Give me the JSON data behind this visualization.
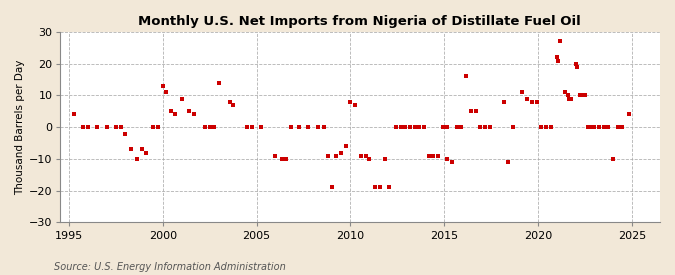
{
  "title": "Monthly U.S. Net Imports from Nigeria of Distillate Fuel Oil",
  "ylabel": "Thousand Barrels per Day",
  "source": "Source: U.S. Energy Information Administration",
  "xlim": [
    1994.5,
    2026.5
  ],
  "ylim": [
    -30,
    30
  ],
  "yticks": [
    -30,
    -20,
    -10,
    0,
    10,
    20,
    30
  ],
  "xticks": [
    1995,
    2000,
    2005,
    2010,
    2015,
    2020,
    2025
  ],
  "background_color": "#f2e8d8",
  "plot_bg_color": "#ffffff",
  "marker_color": "#cc0000",
  "marker_size": 3.5,
  "data_points": [
    [
      1995.25,
      4
    ],
    [
      1995.75,
      0
    ],
    [
      1996.0,
      0
    ],
    [
      1996.5,
      0
    ],
    [
      1997.0,
      0
    ],
    [
      1997.5,
      0
    ],
    [
      1997.75,
      0
    ],
    [
      1998.0,
      -2
    ],
    [
      1998.3,
      -7
    ],
    [
      1998.6,
      -10
    ],
    [
      1998.9,
      -7
    ],
    [
      1999.1,
      -8
    ],
    [
      1999.5,
      0
    ],
    [
      1999.75,
      0
    ],
    [
      2000.0,
      13
    ],
    [
      2000.17,
      11
    ],
    [
      2000.42,
      5
    ],
    [
      2000.67,
      4
    ],
    [
      2001.0,
      9
    ],
    [
      2001.42,
      5
    ],
    [
      2001.67,
      4
    ],
    [
      2002.25,
      0
    ],
    [
      2002.5,
      0
    ],
    [
      2002.75,
      0
    ],
    [
      2003.0,
      14
    ],
    [
      2003.58,
      8
    ],
    [
      2003.75,
      7
    ],
    [
      2004.5,
      0
    ],
    [
      2004.75,
      0
    ],
    [
      2005.25,
      0
    ],
    [
      2006.0,
      -9
    ],
    [
      2006.33,
      -10
    ],
    [
      2006.58,
      -10
    ],
    [
      2006.83,
      0
    ],
    [
      2007.25,
      0
    ],
    [
      2007.75,
      0
    ],
    [
      2008.25,
      0
    ],
    [
      2008.58,
      0
    ],
    [
      2008.83,
      -9
    ],
    [
      2009.0,
      -19
    ],
    [
      2009.25,
      -9
    ],
    [
      2009.5,
      -8
    ],
    [
      2009.75,
      -6
    ],
    [
      2010.0,
      8
    ],
    [
      2010.25,
      7
    ],
    [
      2010.58,
      -9
    ],
    [
      2010.83,
      -9
    ],
    [
      2011.0,
      -10
    ],
    [
      2011.33,
      -19
    ],
    [
      2011.58,
      -19
    ],
    [
      2011.83,
      -10
    ],
    [
      2012.08,
      -19
    ],
    [
      2012.42,
      0
    ],
    [
      2012.67,
      0
    ],
    [
      2012.92,
      0
    ],
    [
      2013.17,
      0
    ],
    [
      2013.42,
      0
    ],
    [
      2013.67,
      0
    ],
    [
      2013.92,
      0
    ],
    [
      2014.17,
      -9
    ],
    [
      2014.42,
      -9
    ],
    [
      2014.67,
      -9
    ],
    [
      2014.92,
      0
    ],
    [
      2015.17,
      0
    ],
    [
      2015.17,
      -10
    ],
    [
      2015.42,
      -11
    ],
    [
      2015.67,
      0
    ],
    [
      2015.92,
      0
    ],
    [
      2016.17,
      16
    ],
    [
      2016.42,
      5
    ],
    [
      2016.67,
      5
    ],
    [
      2016.92,
      0
    ],
    [
      2017.17,
      0
    ],
    [
      2017.42,
      0
    ],
    [
      2018.17,
      8
    ],
    [
      2018.42,
      -11
    ],
    [
      2018.67,
      0
    ],
    [
      2019.17,
      11
    ],
    [
      2019.42,
      9
    ],
    [
      2019.67,
      8
    ],
    [
      2019.92,
      8
    ],
    [
      2020.17,
      0
    ],
    [
      2020.42,
      0
    ],
    [
      2020.67,
      0
    ],
    [
      2021.0,
      22
    ],
    [
      2021.08,
      21
    ],
    [
      2021.17,
      27
    ],
    [
      2021.42,
      11
    ],
    [
      2021.58,
      10
    ],
    [
      2021.67,
      9
    ],
    [
      2021.75,
      9
    ],
    [
      2022.0,
      20
    ],
    [
      2022.08,
      19
    ],
    [
      2022.25,
      10
    ],
    [
      2022.33,
      10
    ],
    [
      2022.5,
      10
    ],
    [
      2022.67,
      0
    ],
    [
      2022.75,
      0
    ],
    [
      2023.0,
      0
    ],
    [
      2023.25,
      0
    ],
    [
      2023.5,
      0
    ],
    [
      2023.75,
      0
    ],
    [
      2024.0,
      -10
    ],
    [
      2024.25,
      0
    ],
    [
      2024.5,
      0
    ],
    [
      2024.83,
      4
    ]
  ]
}
